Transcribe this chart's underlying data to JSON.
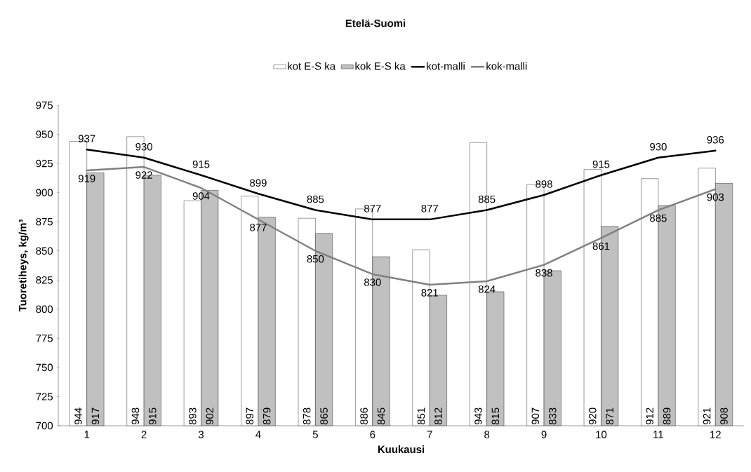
{
  "chart_data": {
    "type": "bar",
    "title": "Etelä-Suomi",
    "xlabel": "Kuukausi",
    "ylabel": "Tuoretiheys, kg/m³",
    "categories": [
      "1",
      "2",
      "3",
      "4",
      "5",
      "6",
      "7",
      "8",
      "9",
      "10",
      "11",
      "12"
    ],
    "series": [
      {
        "name": "kot E-S ka",
        "type": "bar",
        "color": "#ffffff",
        "values": [
          944,
          948,
          893,
          897,
          878,
          886,
          851,
          943,
          907,
          920,
          912,
          921
        ]
      },
      {
        "name": "kok E-S ka",
        "type": "bar",
        "color": "#c0c0c0",
        "values": [
          917,
          915,
          902,
          879,
          865,
          845,
          812,
          815,
          833,
          871,
          889,
          908
        ]
      },
      {
        "name": "kot-malli",
        "type": "line",
        "color": "#000000",
        "values": [
          937,
          930,
          915,
          899,
          885,
          877,
          877,
          885,
          898,
          915,
          930,
          936
        ]
      },
      {
        "name": "kok-malli",
        "type": "line",
        "color": "#808080",
        "values": [
          919,
          922,
          904,
          877,
          850,
          830,
          821,
          824,
          838,
          861,
          885,
          903
        ]
      }
    ],
    "ylim": [
      700,
      975
    ],
    "yticks": [
      700,
      725,
      750,
      775,
      800,
      825,
      850,
      875,
      900,
      925,
      950,
      975
    ],
    "data_labels": true,
    "legend": "top",
    "grid": false
  }
}
